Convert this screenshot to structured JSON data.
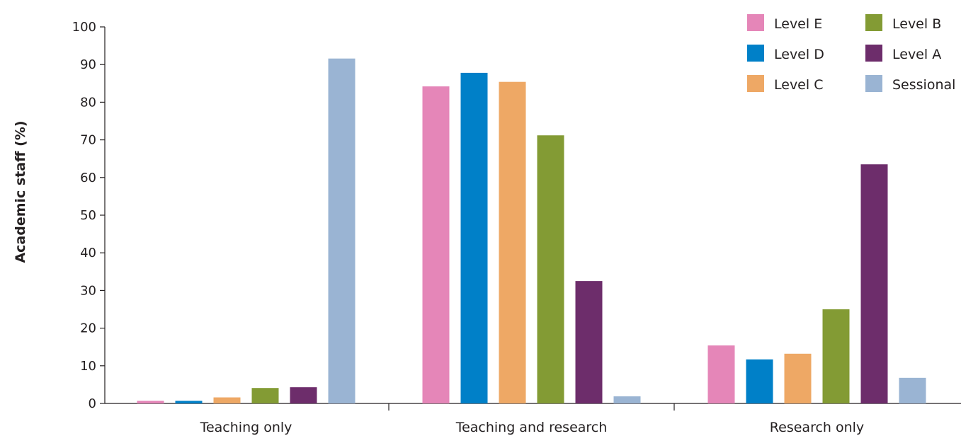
{
  "chart_data": {
    "type": "bar",
    "ylabel": "Academic staff (%)",
    "xlabel": "",
    "ylim": [
      0,
      100
    ],
    "yticks": [
      0,
      10,
      20,
      30,
      40,
      50,
      60,
      70,
      80,
      90,
      100
    ],
    "grid": false,
    "legend_position": "top-right",
    "categories": [
      "Teaching only",
      "Teaching and research",
      "Research only"
    ],
    "series": [
      {
        "name": "Level E",
        "color": "#e586b8",
        "values": [
          0.7,
          84.2,
          15.4
        ]
      },
      {
        "name": "Level D",
        "color": "#0080c8",
        "values": [
          0.7,
          87.8,
          11.7
        ]
      },
      {
        "name": "Level C",
        "color": "#eea865",
        "values": [
          1.6,
          85.4,
          13.2
        ]
      },
      {
        "name": "Level B",
        "color": "#839b34",
        "values": [
          4.1,
          71.2,
          25.0
        ]
      },
      {
        "name": "Level A",
        "color": "#6d2d6b",
        "values": [
          4.3,
          32.5,
          63.5
        ]
      },
      {
        "name": "Sessional",
        "color": "#9ab4d3",
        "values": [
          91.6,
          1.9,
          6.8
        ]
      }
    ]
  }
}
